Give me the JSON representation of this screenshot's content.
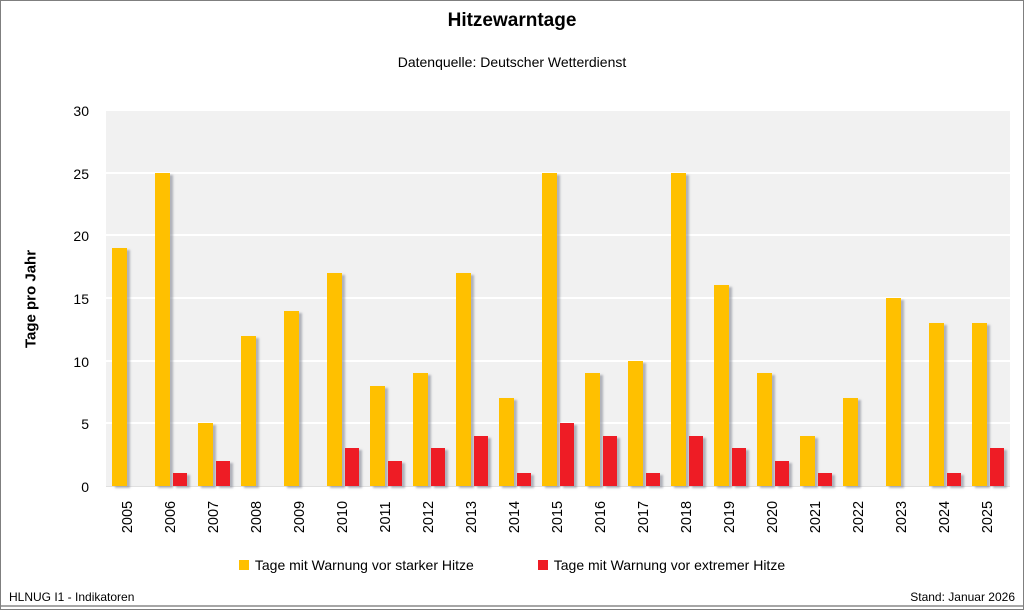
{
  "page": {
    "title": "Hitzewarntage",
    "subtitle": "Datenquelle: Deutscher Wetterdienst",
    "footer_left": "HLNUG I1 - Indikatoren",
    "footer_right": "Stand: Januar 2026"
  },
  "colors": {
    "plot_background": "#F1F1F1",
    "gridline": "#FFFFFF",
    "frame_border": "#7F7F7F",
    "footer_line": "#A6A6A6",
    "strong_heat": "#FFC000",
    "extreme_heat": "#EE1C25"
  },
  "chart_data": {
    "type": "bar",
    "title": "Hitzewarntage",
    "subtitle": "Datenquelle: Deutscher Wetterdienst",
    "xlabel": "",
    "ylabel": "Tage pro Jahr",
    "ylim": [
      0,
      30
    ],
    "yticks": [
      0,
      5,
      10,
      15,
      20,
      25,
      30
    ],
    "grid": "horizontal white lines on gray plot background",
    "legend_position": "bottom",
    "categories": [
      "2005",
      "2006",
      "2007",
      "2008",
      "2009",
      "2010",
      "2011",
      "2012",
      "2013",
      "2014",
      "2015",
      "2016",
      "2017",
      "2018",
      "2019",
      "2020",
      "2021",
      "2022",
      "2023",
      "2024",
      "2025"
    ],
    "series": [
      {
        "name": "Tage mit Warnung vor starker Hitze",
        "color": "#FFC000",
        "values": [
          19,
          25,
          5,
          12,
          14,
          17,
          8,
          9,
          17,
          7,
          25,
          9,
          10,
          25,
          16,
          9,
          4,
          7,
          15,
          13,
          13
        ]
      },
      {
        "name": "Tage mit Warnung vor extremer Hitze",
        "color": "#EE1C25",
        "values": [
          0,
          1,
          2,
          0,
          0,
          3,
          2,
          3,
          4,
          1,
          5,
          4,
          1,
          4,
          3,
          2,
          1,
          0,
          0,
          1,
          3
        ]
      }
    ]
  }
}
